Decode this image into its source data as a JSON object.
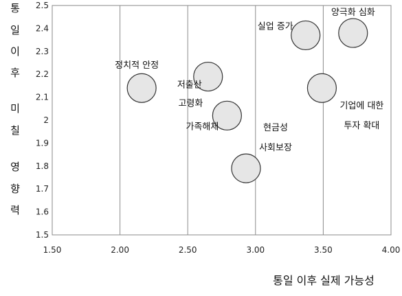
{
  "chart_data": {
    "type": "scatter",
    "title": "",
    "xlabel": "통일 이후 실제 가능성",
    "ylabel_chars": [
      "통",
      "일",
      "이",
      "후",
      "미",
      "칠",
      "영",
      "향",
      "력"
    ],
    "xlim": [
      1.5,
      4.0
    ],
    "ylim": [
      1.5,
      2.5
    ],
    "x_ticks": [
      "1.50",
      "2.00",
      "2.50",
      "3.00",
      "3.50",
      "4.00"
    ],
    "y_ticks": [
      "1.5",
      "1.6",
      "1.7",
      "1.8",
      "1.9",
      "2",
      "2.1",
      "2.2",
      "2.3",
      "2.4",
      "2.5"
    ],
    "grid": true,
    "points": [
      {
        "label": "양극화 심화",
        "x": 3.72,
        "y": 2.38
      },
      {
        "label": "실업 증가",
        "x": 3.37,
        "y": 2.37
      },
      {
        "label": "정치적 안정",
        "x": 2.16,
        "y": 2.14
      },
      {
        "label": "저출산",
        "x": 2.65,
        "y": 2.19
      },
      {
        "label": "고령화",
        "x": 2.79,
        "y": 2.02
      },
      {
        "label": "가족해체",
        "x": 2.79,
        "y": 2.02
      },
      {
        "label": "기업에 대한 투자 확대",
        "x": 3.49,
        "y": 2.14
      },
      {
        "label": "현금성 사회보장",
        "x": 2.93,
        "y": 1.79
      }
    ],
    "marker_color": "#e6e6e6",
    "marker_edge": "#333333"
  }
}
